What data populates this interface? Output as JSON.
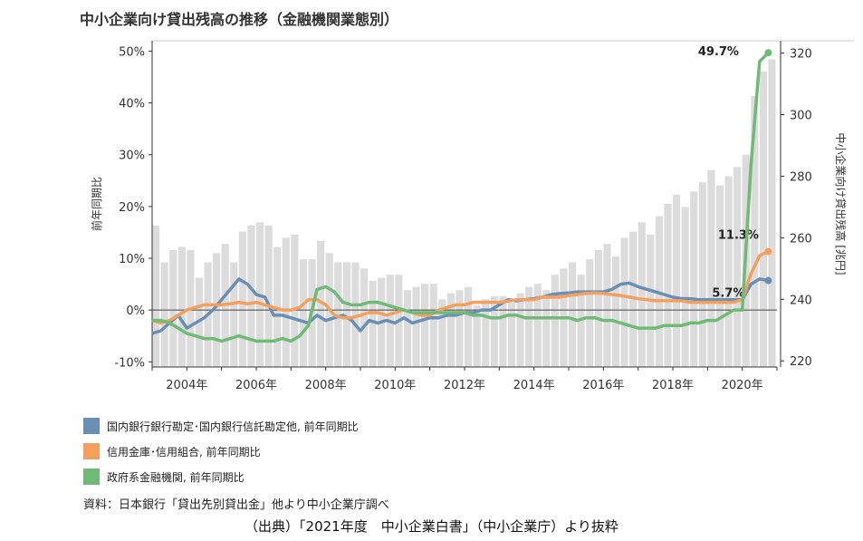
{
  "title": "中小企業向け貸出残高の推移（金融機関業態別）",
  "source_note": "資料：日本銀行「貸出先別貸出金」他より中小企業庁調べ",
  "citation": "（出典）「2021年度　中小企業白書」（中小企業庁）より抜粋",
  "chart_data": {
    "type": "bar+line",
    "ylabel_left": "前年同期比",
    "ylabel_right": "中小企業向け貸出残高 [兆円]",
    "ylim_left": [
      -11,
      52
    ],
    "yticks_left": [
      "-10%",
      "0%",
      "10%",
      "20%",
      "30%",
      "40%",
      "50%"
    ],
    "ylim_right": [
      218,
      324
    ],
    "yticks_right": [
      "220",
      "240",
      "260",
      "280",
      "300",
      "320"
    ],
    "x_start": 2003.0,
    "x_end": 2021.0,
    "xticks": [
      {
        "x": 2004.0,
        "label": "2004年"
      },
      {
        "x": 2006.0,
        "label": "2006年"
      },
      {
        "x": 2008.0,
        "label": "2008年"
      },
      {
        "x": 2010.0,
        "label": "2010年"
      },
      {
        "x": 2012.0,
        "label": "2012年"
      },
      {
        "x": 2014.0,
        "label": "2014年"
      },
      {
        "x": 2016.0,
        "label": "2016年"
      },
      {
        "x": 2018.0,
        "label": "2018年"
      },
      {
        "x": 2020.0,
        "label": "2020年"
      }
    ],
    "bars_balance_trillion_yen": [
      {
        "x": 2003.0,
        "v": 264
      },
      {
        "x": 2003.25,
        "v": 252
      },
      {
        "x": 2003.5,
        "v": 256
      },
      {
        "x": 2003.75,
        "v": 257
      },
      {
        "x": 2004.0,
        "v": 256
      },
      {
        "x": 2004.25,
        "v": 247
      },
      {
        "x": 2004.5,
        "v": 252
      },
      {
        "x": 2004.75,
        "v": 255
      },
      {
        "x": 2005.0,
        "v": 258
      },
      {
        "x": 2005.25,
        "v": 252
      },
      {
        "x": 2005.5,
        "v": 262
      },
      {
        "x": 2005.75,
        "v": 264
      },
      {
        "x": 2006.0,
        "v": 265
      },
      {
        "x": 2006.25,
        "v": 264
      },
      {
        "x": 2006.5,
        "v": 257
      },
      {
        "x": 2006.75,
        "v": 260
      },
      {
        "x": 2007.0,
        "v": 261
      },
      {
        "x": 2007.25,
        "v": 253
      },
      {
        "x": 2007.5,
        "v": 253
      },
      {
        "x": 2007.75,
        "v": 259
      },
      {
        "x": 2008.0,
        "v": 255
      },
      {
        "x": 2008.25,
        "v": 252
      },
      {
        "x": 2008.5,
        "v": 252
      },
      {
        "x": 2008.75,
        "v": 252
      },
      {
        "x": 2009.0,
        "v": 250
      },
      {
        "x": 2009.25,
        "v": 246
      },
      {
        "x": 2009.5,
        "v": 247
      },
      {
        "x": 2009.75,
        "v": 248
      },
      {
        "x": 2010.0,
        "v": 248
      },
      {
        "x": 2010.25,
        "v": 243
      },
      {
        "x": 2010.5,
        "v": 244
      },
      {
        "x": 2010.75,
        "v": 245
      },
      {
        "x": 2011.0,
        "v": 245
      },
      {
        "x": 2011.25,
        "v": 240
      },
      {
        "x": 2011.5,
        "v": 242
      },
      {
        "x": 2011.75,
        "v": 243
      },
      {
        "x": 2012.0,
        "v": 244
      },
      {
        "x": 2012.25,
        "v": 238
      },
      {
        "x": 2012.5,
        "v": 240
      },
      {
        "x": 2012.75,
        "v": 241
      },
      {
        "x": 2013.0,
        "v": 241
      },
      {
        "x": 2013.25,
        "v": 239
      },
      {
        "x": 2013.5,
        "v": 242
      },
      {
        "x": 2013.75,
        "v": 244
      },
      {
        "x": 2014.0,
        "v": 245
      },
      {
        "x": 2014.25,
        "v": 243
      },
      {
        "x": 2014.5,
        "v": 248
      },
      {
        "x": 2014.75,
        "v": 250
      },
      {
        "x": 2015.0,
        "v": 252
      },
      {
        "x": 2015.25,
        "v": 248
      },
      {
        "x": 2015.5,
        "v": 253
      },
      {
        "x": 2015.75,
        "v": 256
      },
      {
        "x": 2016.0,
        "v": 258
      },
      {
        "x": 2016.25,
        "v": 254
      },
      {
        "x": 2016.5,
        "v": 260
      },
      {
        "x": 2016.75,
        "v": 262
      },
      {
        "x": 2017.0,
        "v": 265
      },
      {
        "x": 2017.25,
        "v": 261
      },
      {
        "x": 2017.5,
        "v": 267
      },
      {
        "x": 2017.75,
        "v": 271
      },
      {
        "x": 2018.0,
        "v": 274
      },
      {
        "x": 2018.25,
        "v": 270
      },
      {
        "x": 2018.5,
        "v": 275
      },
      {
        "x": 2018.75,
        "v": 278
      },
      {
        "x": 2019.0,
        "v": 282
      },
      {
        "x": 2019.25,
        "v": 277
      },
      {
        "x": 2019.5,
        "v": 280
      },
      {
        "x": 2019.75,
        "v": 283
      },
      {
        "x": 2020.0,
        "v": 287
      },
      {
        "x": 2020.25,
        "v": 306
      },
      {
        "x": 2020.5,
        "v": 314
      },
      {
        "x": 2020.75,
        "v": 318
      }
    ],
    "series": [
      {
        "name": "国内銀行銀行勘定･国内銀行信託勘定他, 前年同期比",
        "color": "#6a8fb5",
        "end_label": "5.7%",
        "points": [
          [
            2003.0,
            -4.5
          ],
          [
            2003.25,
            -4
          ],
          [
            2003.5,
            -2.5
          ],
          [
            2003.75,
            -1
          ],
          [
            2004.0,
            -3.5
          ],
          [
            2004.25,
            -2.5
          ],
          [
            2004.5,
            -1.5
          ],
          [
            2004.75,
            0
          ],
          [
            2005.0,
            2
          ],
          [
            2005.25,
            4
          ],
          [
            2005.5,
            6
          ],
          [
            2005.75,
            5
          ],
          [
            2006.0,
            3
          ],
          [
            2006.25,
            2.5
          ],
          [
            2006.5,
            -1
          ],
          [
            2006.75,
            -1
          ],
          [
            2007.0,
            -1.5
          ],
          [
            2007.25,
            -2
          ],
          [
            2007.5,
            -2.5
          ],
          [
            2007.75,
            -1
          ],
          [
            2008.0,
            -2
          ],
          [
            2008.25,
            -1.5
          ],
          [
            2008.5,
            -1
          ],
          [
            2008.75,
            -2
          ],
          [
            2009.0,
            -4
          ],
          [
            2009.25,
            -2
          ],
          [
            2009.5,
            -2.5
          ],
          [
            2009.75,
            -2
          ],
          [
            2010.0,
            -2.5
          ],
          [
            2010.25,
            -1.5
          ],
          [
            2010.5,
            -2.5
          ],
          [
            2010.75,
            -2
          ],
          [
            2011.0,
            -1.5
          ],
          [
            2011.25,
            -1.5
          ],
          [
            2011.5,
            -1
          ],
          [
            2011.75,
            -1
          ],
          [
            2012.0,
            -0.5
          ],
          [
            2012.25,
            -0.5
          ],
          [
            2012.5,
            0
          ],
          [
            2012.75,
            0
          ],
          [
            2013.0,
            1
          ],
          [
            2013.25,
            2
          ],
          [
            2013.5,
            1.8
          ],
          [
            2013.75,
            2
          ],
          [
            2014.0,
            2.2
          ],
          [
            2014.25,
            2.5
          ],
          [
            2014.5,
            3
          ],
          [
            2014.75,
            3.2
          ],
          [
            2015.0,
            3.3
          ],
          [
            2015.25,
            3.5
          ],
          [
            2015.5,
            3.5
          ],
          [
            2015.75,
            3.5
          ],
          [
            2016.0,
            3.5
          ],
          [
            2016.25,
            4
          ],
          [
            2016.5,
            5
          ],
          [
            2016.75,
            5.2
          ],
          [
            2017.0,
            4.5
          ],
          [
            2017.25,
            4
          ],
          [
            2017.5,
            3.5
          ],
          [
            2017.75,
            3
          ],
          [
            2018.0,
            2.5
          ],
          [
            2018.25,
            2.2
          ],
          [
            2018.5,
            2.2
          ],
          [
            2018.75,
            2
          ],
          [
            2019.0,
            2
          ],
          [
            2019.25,
            2
          ],
          [
            2019.5,
            2
          ],
          [
            2019.75,
            2
          ],
          [
            2020.0,
            2
          ],
          [
            2020.25,
            5
          ],
          [
            2020.5,
            6
          ],
          [
            2020.75,
            5.7
          ]
        ]
      },
      {
        "name": "信用金庫･信用組合, 前年同期比",
        "color": "#f3a05f",
        "end_label": "11.3%",
        "points": [
          [
            2003.0,
            -2
          ],
          [
            2003.25,
            -2.5
          ],
          [
            2003.5,
            -2
          ],
          [
            2003.75,
            -1
          ],
          [
            2004.0,
            0
          ],
          [
            2004.25,
            0.5
          ],
          [
            2004.5,
            1
          ],
          [
            2004.75,
            1
          ],
          [
            2005.0,
            1
          ],
          [
            2005.25,
            1.2
          ],
          [
            2005.5,
            1.5
          ],
          [
            2005.75,
            1.2
          ],
          [
            2006.0,
            1.5
          ],
          [
            2006.25,
            1
          ],
          [
            2006.5,
            0.5
          ],
          [
            2006.75,
            0
          ],
          [
            2007.0,
            0
          ],
          [
            2007.25,
            0.5
          ],
          [
            2007.5,
            2
          ],
          [
            2007.75,
            2
          ],
          [
            2008.0,
            1
          ],
          [
            2008.25,
            -1
          ],
          [
            2008.5,
            -1.5
          ],
          [
            2008.75,
            -1.5
          ],
          [
            2009.0,
            -1
          ],
          [
            2009.25,
            -0.5
          ],
          [
            2009.5,
            -0.5
          ],
          [
            2009.75,
            -1
          ],
          [
            2010.0,
            -0.5
          ],
          [
            2010.25,
            0
          ],
          [
            2010.5,
            -0.5
          ],
          [
            2010.75,
            -1
          ],
          [
            2011.0,
            -1
          ],
          [
            2011.25,
            0
          ],
          [
            2011.5,
            0.5
          ],
          [
            2011.75,
            1
          ],
          [
            2012.0,
            1
          ],
          [
            2012.25,
            1.5
          ],
          [
            2012.5,
            1.5
          ],
          [
            2012.75,
            1.5
          ],
          [
            2013.0,
            1.5
          ],
          [
            2013.25,
            1.7
          ],
          [
            2013.5,
            2
          ],
          [
            2013.75,
            2
          ],
          [
            2014.0,
            2
          ],
          [
            2014.25,
            2.5
          ],
          [
            2014.5,
            2.5
          ],
          [
            2014.75,
            2.5
          ],
          [
            2015.0,
            2.8
          ],
          [
            2015.25,
            3
          ],
          [
            2015.5,
            3.2
          ],
          [
            2015.75,
            3.3
          ],
          [
            2016.0,
            3.2
          ],
          [
            2016.25,
            3
          ],
          [
            2016.5,
            2.8
          ],
          [
            2016.75,
            2.5
          ],
          [
            2017.0,
            2.2
          ],
          [
            2017.25,
            2
          ],
          [
            2017.5,
            1.8
          ],
          [
            2017.75,
            1.8
          ],
          [
            2018.0,
            1.8
          ],
          [
            2018.25,
            1.8
          ],
          [
            2018.5,
            1.5
          ],
          [
            2018.75,
            1.5
          ],
          [
            2019.0,
            1.5
          ],
          [
            2019.25,
            1.5
          ],
          [
            2019.5,
            1.5
          ],
          [
            2019.75,
            1.5
          ],
          [
            2020.0,
            2
          ],
          [
            2020.25,
            7
          ],
          [
            2020.5,
            10.5
          ],
          [
            2020.75,
            11.3
          ]
        ]
      },
      {
        "name": "政府系金融機関, 前年同期比",
        "color": "#6fba74",
        "end_label": "49.7%",
        "points": [
          [
            2003.0,
            -2
          ],
          [
            2003.25,
            -2
          ],
          [
            2003.5,
            -2.5
          ],
          [
            2003.75,
            -3.5
          ],
          [
            2004.0,
            -4.5
          ],
          [
            2004.25,
            -5
          ],
          [
            2004.5,
            -5.5
          ],
          [
            2004.75,
            -5.5
          ],
          [
            2005.0,
            -6
          ],
          [
            2005.25,
            -5.5
          ],
          [
            2005.5,
            -5
          ],
          [
            2005.75,
            -5.5
          ],
          [
            2006.0,
            -6
          ],
          [
            2006.25,
            -6
          ],
          [
            2006.5,
            -6
          ],
          [
            2006.75,
            -5.5
          ],
          [
            2007.0,
            -6
          ],
          [
            2007.25,
            -5
          ],
          [
            2007.5,
            -3
          ],
          [
            2007.75,
            4
          ],
          [
            2008.0,
            4.5
          ],
          [
            2008.25,
            3.5
          ],
          [
            2008.5,
            1.5
          ],
          [
            2008.75,
            1
          ],
          [
            2009.0,
            1
          ],
          [
            2009.25,
            1.5
          ],
          [
            2009.5,
            1.5
          ],
          [
            2009.75,
            1
          ],
          [
            2010.0,
            0.5
          ],
          [
            2010.25,
            0
          ],
          [
            2010.5,
            -0.5
          ],
          [
            2010.75,
            -0.5
          ],
          [
            2011.0,
            -0.5
          ],
          [
            2011.25,
            -0.5
          ],
          [
            2011.5,
            -0.5
          ],
          [
            2011.75,
            -0.5
          ],
          [
            2012.0,
            -0.5
          ],
          [
            2012.25,
            -1
          ],
          [
            2012.5,
            -1
          ],
          [
            2012.75,
            -1.5
          ],
          [
            2013.0,
            -1.5
          ],
          [
            2013.25,
            -1
          ],
          [
            2013.5,
            -1
          ],
          [
            2013.75,
            -1.5
          ],
          [
            2014.0,
            -1.5
          ],
          [
            2014.25,
            -1.5
          ],
          [
            2014.5,
            -1.5
          ],
          [
            2014.75,
            -1.5
          ],
          [
            2015.0,
            -1.5
          ],
          [
            2015.25,
            -2
          ],
          [
            2015.5,
            -1.5
          ],
          [
            2015.75,
            -1.5
          ],
          [
            2016.0,
            -2
          ],
          [
            2016.25,
            -2
          ],
          [
            2016.5,
            -2.5
          ],
          [
            2016.75,
            -3
          ],
          [
            2017.0,
            -3.5
          ],
          [
            2017.25,
            -3.5
          ],
          [
            2017.5,
            -3.5
          ],
          [
            2017.75,
            -3
          ],
          [
            2018.0,
            -3
          ],
          [
            2018.25,
            -3
          ],
          [
            2018.5,
            -2.5
          ],
          [
            2018.75,
            -2.5
          ],
          [
            2019.0,
            -2
          ],
          [
            2019.25,
            -2
          ],
          [
            2019.5,
            -1
          ],
          [
            2019.75,
            0
          ],
          [
            2020.0,
            0
          ],
          [
            2020.25,
            28
          ],
          [
            2020.5,
            48
          ],
          [
            2020.75,
            49.7
          ]
        ]
      }
    ]
  }
}
